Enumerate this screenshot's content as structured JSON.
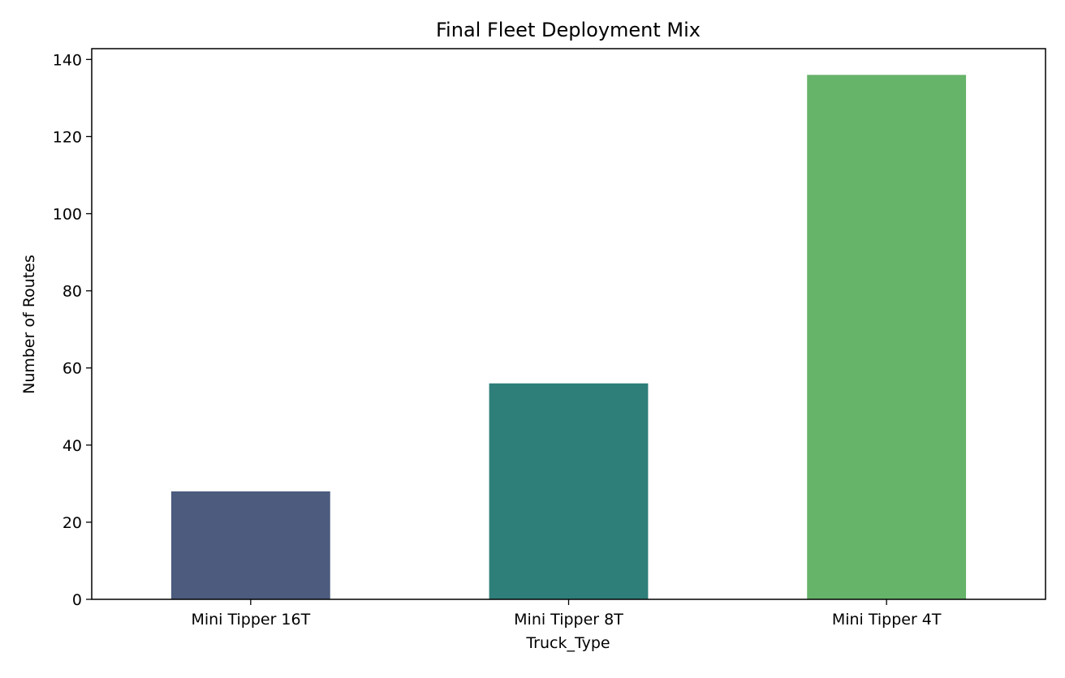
{
  "chart_data": {
    "type": "bar",
    "title": "Final Fleet Deployment Mix",
    "xlabel": "Truck_Type",
    "ylabel": "Number of Routes",
    "categories": [
      "Mini Tipper 16T",
      "Mini Tipper 8T",
      "Mini Tipper 4T"
    ],
    "values": [
      28,
      56,
      136
    ],
    "colors": [
      "#4c5b7e",
      "#2e7e7a",
      "#66b36a"
    ],
    "ylim": [
      0,
      142.8
    ],
    "yticks": [
      0,
      20,
      40,
      60,
      80,
      100,
      120,
      140
    ],
    "grid": false,
    "legend": null
  }
}
